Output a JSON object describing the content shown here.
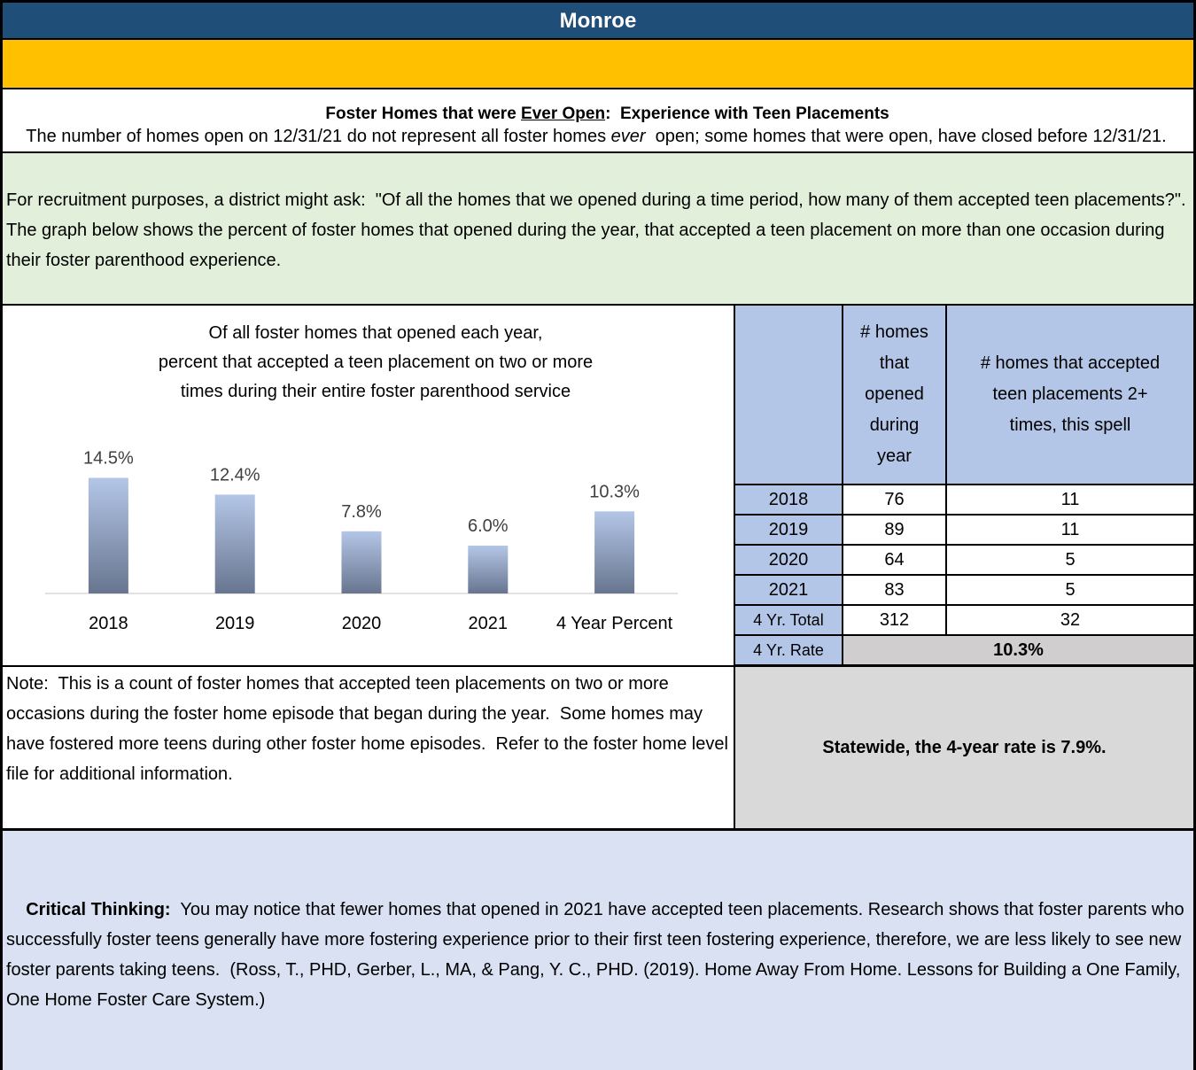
{
  "header": {
    "title": "Monroe",
    "subtitle": {
      "before": "Foster Homes that were ",
      "underlined": "Ever Open",
      "after": ":  Experience with Teen Placements"
    }
  },
  "intro": {
    "before": "The number of homes open on 12/31/21 do not represent all foster homes ",
    "italic": "ever",
    "after": "  open; some homes that were open, have closed before 12/31/21."
  },
  "context": "For recruitment purposes, a district might ask:  \"Of all the homes that we opened during a time period, how many of them accepted teen placements?\".  The graph below shows the percent of foster homes that opened during the year, that accepted a teen placement on more than one occasion during their foster parenthood experience.",
  "chart_data": {
    "type": "bar",
    "title": [
      "Of all foster homes that opened each year,",
      "percent that accepted a teen placement on two or more",
      "times during their entire foster parenthood service"
    ],
    "categories": [
      "2018",
      "2019",
      "2020",
      "2021",
      "4 Year Percent"
    ],
    "values": [
      14.5,
      12.4,
      7.8,
      6.0,
      10.3
    ],
    "value_labels": [
      "14.5%",
      "12.4%",
      "7.8%",
      "6.0%",
      "10.3%"
    ],
    "ylim": [
      0,
      16
    ],
    "color": "#b4c6e7"
  },
  "table": {
    "columns": [
      "# homes that opened during year",
      "# homes that accepted teen placements 2+ times, this spell"
    ],
    "rows": [
      [
        "2018",
        76,
        11
      ],
      [
        "2019",
        89,
        11
      ],
      [
        "2020",
        64,
        5
      ],
      [
        "2021",
        83,
        5
      ],
      [
        "4 Yr. Total",
        312,
        32
      ]
    ],
    "rate": {
      "label": "4 Yr. Rate",
      "value": "10.3%"
    }
  },
  "note": "Note:  This is a count of foster homes that accepted teen placements on two or more occasions during the foster home episode that began during the year.  Some homes may have fostered more teens during other foster home episodes.  Refer to the foster home level file for additional information.",
  "statewide": "Statewide, the 4-year rate is 7.9%.",
  "critical": {
    "label": "Critical Thinking:",
    "text": "  You may notice that fewer homes that opened in 2021 have accepted teen placements. Research shows that foster parents who successfully foster teens generally have more fostering experience prior to their first teen fostering experience, therefore, we are less likely to see new foster parents taking teens.  (Ross, T., PHD, Gerber, L., MA, & Pang, Y. C., PHD. (2019). Home Away From Home. Lessons for Building a One Family, One Home Foster Care System.)"
  }
}
